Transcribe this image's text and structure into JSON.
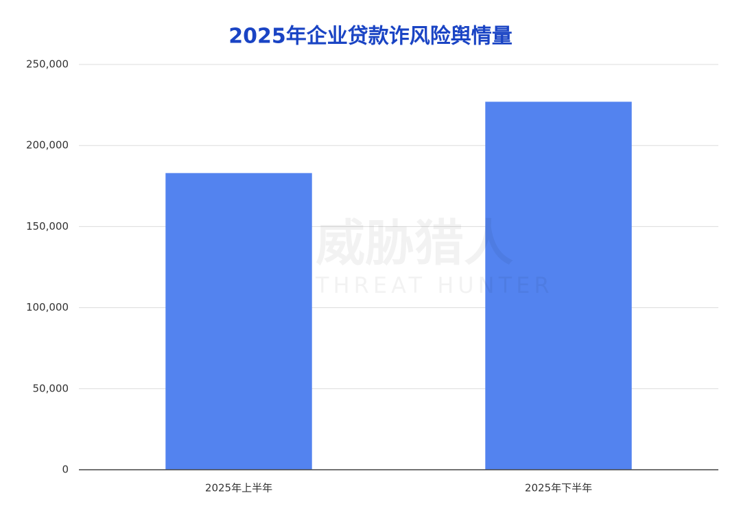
{
  "chart_data": {
    "type": "bar",
    "title": "2025年企业贷款诈风险舆情量",
    "categories": [
      "2025年上半年",
      "2025年下半年"
    ],
    "values": [
      183000,
      227000
    ],
    "color": "#5383ef",
    "ylim": [
      0,
      250000
    ],
    "yticks": [
      0,
      {
        "value": 50000,
        "label": "50,000"
      },
      {
        "value": 100000,
        "label": "100,000"
      },
      {
        "value": 150000,
        "label": "150,000"
      },
      {
        "value": 200000,
        "label": "200,000"
      },
      {
        "value": 250000,
        "label": "250,000"
      }
    ],
    "grid": true,
    "watermark": [
      "威胁猎人",
      "THREAT HUNTER"
    ]
  }
}
